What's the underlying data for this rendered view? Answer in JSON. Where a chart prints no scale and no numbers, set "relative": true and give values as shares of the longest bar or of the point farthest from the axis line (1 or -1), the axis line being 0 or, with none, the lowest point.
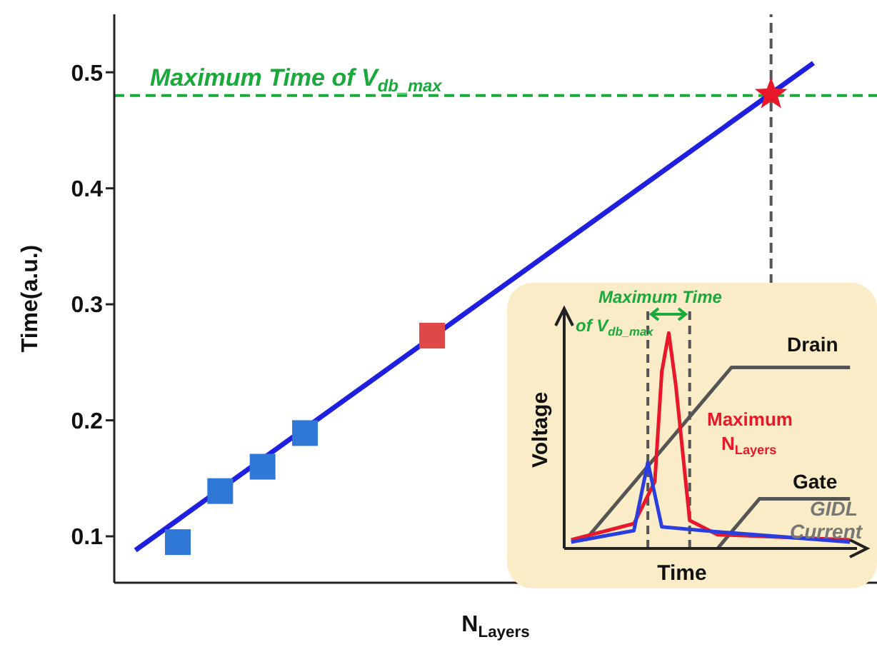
{
  "chart_data": [
    {
      "type": "scatter",
      "xlabel": "N$_{Layers}$",
      "ylabel": "Time(a.u.)",
      "categories": [
        null,
        null,
        null,
        null,
        null,
        null,
        null,
        null,
        null,
        null,
        null,
        null,
        null,
        null,
        null,
        null,
        null,
        null
      ],
      "ylim": [
        0.06,
        0.55
      ],
      "yticks": [
        0.1,
        0.2,
        0.3,
        0.4,
        0.5
      ],
      "series": [
        {
          "type": "line",
          "color": "#1f1fe0",
          "marker": "none",
          "line_style": "solid",
          "values": [
            0.088,
            null,
            null,
            null,
            null,
            null,
            null,
            null,
            null,
            null,
            null,
            null,
            null,
            null,
            null,
            null,
            0.508,
            null
          ]
        },
        {
          "marker": "square",
          "values": [
            null,
            0.095,
            0.139,
            0.16,
            0.189,
            null,
            null,
            0.273,
            null,
            null,
            null,
            null,
            null,
            null,
            null,
            null,
            null,
            null
          ],
          "colors": [
            null,
            "#2f78d8",
            "#2f78d8",
            "#2f78d8",
            "#2f78d8",
            null,
            null,
            "#e04848",
            null,
            null,
            null,
            null,
            null,
            null,
            null,
            null,
            null,
            null
          ]
        },
        {
          "marker": "star",
          "color": "#e8182a",
          "values": [
            null,
            null,
            null,
            null,
            null,
            null,
            null,
            null,
            null,
            null,
            null,
            null,
            null,
            null,
            null,
            0.481,
            null,
            null
          ]
        }
      ],
      "ref_lines": [
        {
          "axis": "y",
          "value": 0.48,
          "label": "Maximum Time of V$_{db_max}$",
          "color": "#1aaa3c",
          "line_style": "dashed"
        }
      ]
    },
    {
      "type": "line",
      "relative": true,
      "xlabel": "Time",
      "ylabel": "Voltage",
      "categories": [
        null,
        null,
        null,
        null,
        null,
        null,
        null,
        null,
        null,
        null,
        null,
        null,
        null,
        null,
        null,
        null,
        null,
        null,
        null,
        null,
        null,
        null,
        null,
        null,
        null,
        null,
        null,
        null,
        null,
        null,
        null,
        null,
        null,
        null,
        null,
        null,
        null,
        null,
        null,
        null,
        null
      ],
      "series": [
        {
          "color": "#555555",
          "values": [
            null,
            null,
            0.038,
            null,
            null,
            null,
            null,
            null,
            null,
            null,
            null,
            null,
            null,
            null,
            null,
            null,
            null,
            null,
            null,
            null,
            null,
            null,
            null,
            0.84,
            null,
            null,
            null,
            null,
            null,
            null,
            null,
            null,
            null,
            null,
            null,
            null,
            null,
            null,
            null,
            null,
            0.84
          ]
        },
        {
          "color": "#555555",
          "values": [
            null,
            null,
            null,
            null,
            null,
            null,
            null,
            null,
            null,
            null,
            null,
            null,
            null,
            null,
            null,
            null,
            null,
            null,
            null,
            null,
            null,
            0,
            null,
            null,
            null,
            null,
            null,
            0.23,
            null,
            null,
            null,
            null,
            null,
            null,
            null,
            null,
            null,
            null,
            null,
            null,
            0.23
          ]
        },
        {
          "color": "#e8182a",
          "values": [
            0.04,
            null,
            null,
            null,
            null,
            null,
            null,
            null,
            null,
            0.115,
            null,
            null,
            0.31,
            0.82,
            1,
            0.76,
            null,
            0.13,
            null,
            null,
            null,
            0.064,
            null,
            null,
            null,
            null,
            null,
            null,
            null,
            null,
            null,
            null,
            null,
            null,
            null,
            null,
            null,
            null,
            null,
            null,
            0.04
          ]
        },
        {
          "color": "#2a3ee0",
          "values": [
            0.03,
            null,
            null,
            null,
            null,
            null,
            null,
            null,
            null,
            0.083,
            null,
            0.4,
            null,
            0.1,
            null,
            null,
            null,
            null,
            null,
            null,
            null,
            0.077,
            null,
            null,
            null,
            null,
            null,
            null,
            null,
            null,
            null,
            null,
            null,
            null,
            null,
            null,
            null,
            null,
            null,
            null,
            0.03
          ]
        }
      ],
      "annotations": [
        "Maximum Time",
        "of V$_{db_max}$",
        "Drain",
        "Maximum",
        "N$_{Layers}$",
        "Gate",
        "GIDL",
        "Current"
      ]
    }
  ]
}
